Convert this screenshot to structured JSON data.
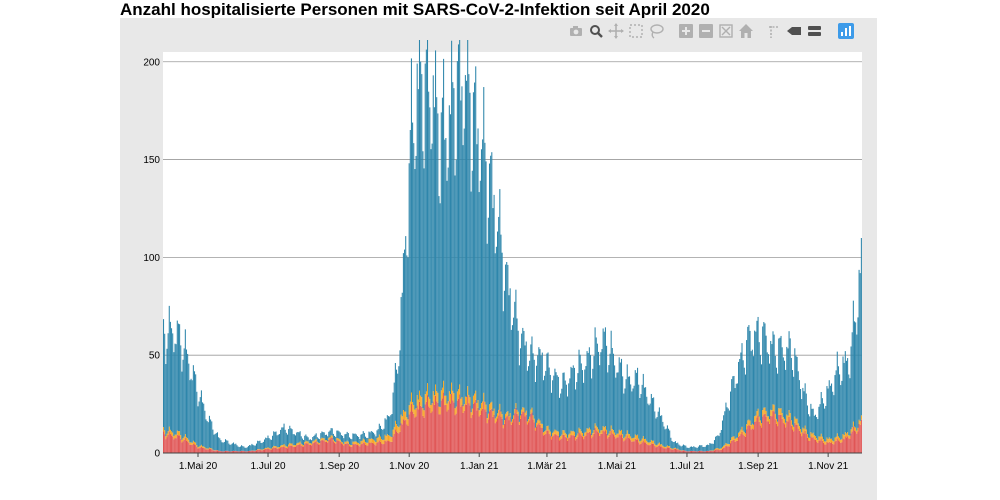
{
  "title": "Anzahl hospitalisierte Personen mit SARS-CoV-2-Infektion seit April 2020",
  "toolbar": {
    "items": [
      {
        "name": "camera-icon"
      },
      {
        "name": "zoom-icon"
      },
      {
        "name": "pan-icon"
      },
      {
        "name": "box-select-icon"
      },
      {
        "name": "lasso-select-icon"
      },
      {
        "name": "zoom-in-icon"
      },
      {
        "name": "zoom-out-icon"
      },
      {
        "name": "autoscale-icon"
      },
      {
        "name": "home-icon"
      },
      {
        "name": "spike-lines-icon"
      },
      {
        "name": "hover-closest-icon"
      },
      {
        "name": "hover-compare-icon"
      },
      {
        "name": "plotly-logo-icon"
      }
    ]
  },
  "chart_data": {
    "type": "bar",
    "stacked": true,
    "title": "Anzahl hospitalisierte Personen mit SARS-CoV-2-Infektion seit April 2020",
    "xlabel": "",
    "ylabel": "",
    "x_start": "2020-04-01",
    "x_end": "2021-11-30",
    "x_ticks": [
      {
        "date": "2020-05-01",
        "label": "1.Mai 20"
      },
      {
        "date": "2020-07-01",
        "label": "1.Jul 20"
      },
      {
        "date": "2020-09-01",
        "label": "1.Sep 20"
      },
      {
        "date": "2020-11-01",
        "label": "1.Nov 20"
      },
      {
        "date": "2021-01-01",
        "label": "1.Jan 21"
      },
      {
        "date": "2021-03-01",
        "label": "1.Mär 21"
      },
      {
        "date": "2021-05-01",
        "label": "1.Mai 21"
      },
      {
        "date": "2021-07-01",
        "label": "1.Jul 21"
      },
      {
        "date": "2021-09-01",
        "label": "1.Sep 21"
      },
      {
        "date": "2021-11-01",
        "label": "1.Nov 21"
      }
    ],
    "y_ticks": [
      0,
      50,
      100,
      150,
      200
    ],
    "ylim": [
      0,
      205
    ],
    "grid": true,
    "series_colors": {
      "red": "#e05555",
      "orange": "#f5a623",
      "blue": "#2e86ab"
    },
    "series": [
      {
        "color": "red",
        "points": [
          [
            "2020-04-01",
            10
          ],
          [
            "2020-04-15",
            8
          ],
          [
            "2020-05-01",
            3
          ],
          [
            "2020-05-20",
            1
          ],
          [
            "2020-06-15",
            1
          ],
          [
            "2020-07-15",
            3
          ],
          [
            "2020-08-10",
            5
          ],
          [
            "2020-08-25",
            7
          ],
          [
            "2020-09-10",
            4
          ],
          [
            "2020-09-30",
            5
          ],
          [
            "2020-10-15",
            6
          ],
          [
            "2020-10-25",
            14
          ],
          [
            "2020-11-05",
            22
          ],
          [
            "2020-11-20",
            25
          ],
          [
            "2020-12-05",
            26
          ],
          [
            "2020-12-20",
            25
          ],
          [
            "2021-01-01",
            23
          ],
          [
            "2021-01-15",
            19
          ],
          [
            "2021-01-25",
            17
          ],
          [
            "2021-02-05",
            20
          ],
          [
            "2021-02-15",
            18
          ],
          [
            "2021-03-01",
            10
          ],
          [
            "2021-03-15",
            8
          ],
          [
            "2021-04-01",
            9
          ],
          [
            "2021-04-15",
            11
          ],
          [
            "2021-05-01",
            9
          ],
          [
            "2021-05-20",
            6
          ],
          [
            "2021-06-10",
            3
          ],
          [
            "2021-06-30",
            1
          ],
          [
            "2021-07-20",
            1
          ],
          [
            "2021-08-01",
            2
          ],
          [
            "2021-08-15",
            8
          ],
          [
            "2021-09-01",
            17
          ],
          [
            "2021-09-15",
            19
          ],
          [
            "2021-10-01",
            15
          ],
          [
            "2021-10-15",
            8
          ],
          [
            "2021-11-01",
            5
          ],
          [
            "2021-11-15",
            7
          ],
          [
            "2021-11-25",
            12
          ],
          [
            "2021-11-30",
            15
          ]
        ]
      },
      {
        "color": "orange",
        "points": [
          [
            "2020-04-01",
            2
          ],
          [
            "2020-04-15",
            2
          ],
          [
            "2020-05-01",
            1
          ],
          [
            "2020-05-20",
            0
          ],
          [
            "2020-06-15",
            0
          ],
          [
            "2020-07-15",
            1
          ],
          [
            "2020-08-10",
            1
          ],
          [
            "2020-08-25",
            1
          ],
          [
            "2020-09-10",
            1
          ],
          [
            "2020-09-30",
            2
          ],
          [
            "2020-10-15",
            3
          ],
          [
            "2020-10-25",
            4
          ],
          [
            "2020-11-05",
            5
          ],
          [
            "2020-11-20",
            5
          ],
          [
            "2020-12-05",
            5
          ],
          [
            "2020-12-20",
            4
          ],
          [
            "2021-01-01",
            4
          ],
          [
            "2021-01-15",
            3
          ],
          [
            "2021-01-25",
            2
          ],
          [
            "2021-02-05",
            2
          ],
          [
            "2021-02-15",
            2
          ],
          [
            "2021-03-01",
            2
          ],
          [
            "2021-03-15",
            2
          ],
          [
            "2021-04-01",
            2
          ],
          [
            "2021-04-15",
            2
          ],
          [
            "2021-05-01",
            2
          ],
          [
            "2021-05-20",
            2
          ],
          [
            "2021-06-10",
            1
          ],
          [
            "2021-06-30",
            0
          ],
          [
            "2021-07-20",
            0
          ],
          [
            "2021-08-01",
            1
          ],
          [
            "2021-08-15",
            2
          ],
          [
            "2021-09-01",
            3
          ],
          [
            "2021-09-15",
            3
          ],
          [
            "2021-10-01",
            3
          ],
          [
            "2021-10-15",
            2
          ],
          [
            "2021-11-01",
            2
          ],
          [
            "2021-11-15",
            2
          ],
          [
            "2021-11-25",
            2
          ],
          [
            "2021-11-30",
            2
          ]
        ]
      },
      {
        "color": "blue",
        "points": [
          [
            "2020-04-01",
            50
          ],
          [
            "2020-04-10",
            53
          ],
          [
            "2020-04-20",
            45
          ],
          [
            "2020-05-01",
            28
          ],
          [
            "2020-05-10",
            15
          ],
          [
            "2020-05-20",
            6
          ],
          [
            "2020-06-10",
            2
          ],
          [
            "2020-06-25",
            4
          ],
          [
            "2020-07-05",
            6
          ],
          [
            "2020-07-15",
            9
          ],
          [
            "2020-07-25",
            6
          ],
          [
            "2020-08-05",
            2
          ],
          [
            "2020-08-20",
            3
          ],
          [
            "2020-09-10",
            4
          ],
          [
            "2020-09-25",
            3
          ],
          [
            "2020-10-05",
            4
          ],
          [
            "2020-10-15",
            10
          ],
          [
            "2020-10-22",
            30
          ],
          [
            "2020-10-28",
            80
          ],
          [
            "2020-11-03",
            140
          ],
          [
            "2020-11-10",
            165
          ],
          [
            "2020-11-20",
            160
          ],
          [
            "2020-11-28",
            135
          ],
          [
            "2020-12-05",
            140
          ],
          [
            "2020-12-12",
            160
          ],
          [
            "2020-12-20",
            165
          ],
          [
            "2020-12-28",
            145
          ],
          [
            "2021-01-05",
            130
          ],
          [
            "2021-01-15",
            105
          ],
          [
            "2021-01-25",
            70
          ],
          [
            "2021-02-05",
            40
          ],
          [
            "2021-02-15",
            30
          ],
          [
            "2021-02-25",
            35
          ],
          [
            "2021-03-05",
            30
          ],
          [
            "2021-03-15",
            25
          ],
          [
            "2021-03-25",
            32
          ],
          [
            "2021-04-05",
            36
          ],
          [
            "2021-04-20",
            46
          ],
          [
            "2021-05-01",
            35
          ],
          [
            "2021-05-10",
            28
          ],
          [
            "2021-05-20",
            30
          ],
          [
            "2021-06-01",
            20
          ],
          [
            "2021-06-10",
            13
          ],
          [
            "2021-06-20",
            3
          ],
          [
            "2021-07-05",
            2
          ],
          [
            "2021-07-20",
            3
          ],
          [
            "2021-07-28",
            6
          ],
          [
            "2021-08-05",
            20
          ],
          [
            "2021-08-15",
            35
          ],
          [
            "2021-08-25",
            44
          ],
          [
            "2021-09-05",
            40
          ],
          [
            "2021-09-15",
            32
          ],
          [
            "2021-10-01",
            35
          ],
          [
            "2021-10-10",
            20
          ],
          [
            "2021-10-20",
            10
          ],
          [
            "2021-11-01",
            25
          ],
          [
            "2021-11-10",
            35
          ],
          [
            "2021-11-20",
            38
          ],
          [
            "2021-11-25",
            58
          ],
          [
            "2021-11-30",
            80
          ]
        ]
      }
    ]
  }
}
